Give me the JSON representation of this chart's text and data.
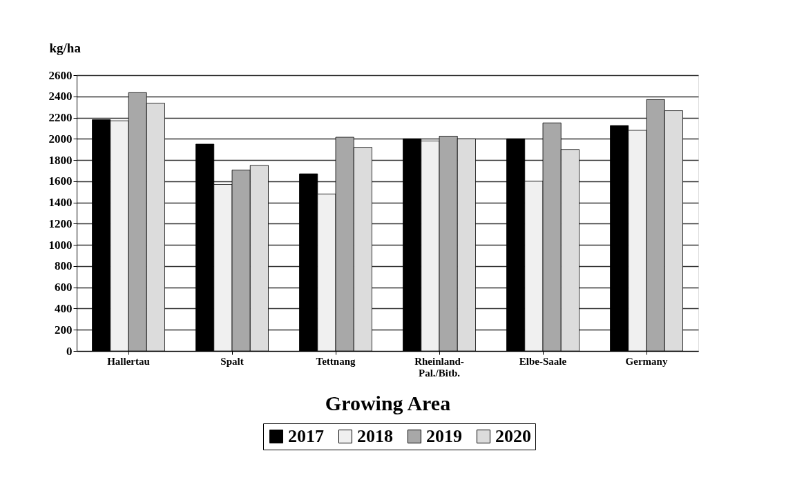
{
  "chart_data": {
    "type": "bar",
    "xlabel": "Growing Area",
    "ylabel": "kg/ha",
    "categories": [
      "Hallertau",
      "Spalt",
      "Tettnang",
      "Rheinland-Pal./Bitb.",
      "Elbe-Saale",
      "Germany"
    ],
    "series": [
      {
        "name": "2017",
        "color": "#000000",
        "values": [
          2180,
          1950,
          1670,
          2000,
          2000,
          2125
        ]
      },
      {
        "name": "2018",
        "color": "#f0f0f0",
        "values": [
          2170,
          1570,
          1480,
          1980,
          1600,
          2080
        ]
      },
      {
        "name": "2019",
        "color": "#a8a8a8",
        "values": [
          2435,
          1705,
          2015,
          2025,
          2150,
          2370
        ]
      },
      {
        "name": "2020",
        "color": "#dcdcdc",
        "values": [
          2335,
          1750,
          1920,
          2000,
          1900,
          2265
        ]
      }
    ],
    "ylim": [
      0,
      2600
    ],
    "yticks": [
      0,
      200,
      400,
      600,
      800,
      1000,
      1200,
      1400,
      1600,
      1800,
      2000,
      2200,
      2400,
      2600
    ],
    "grid": "y",
    "legend": "bottom"
  }
}
